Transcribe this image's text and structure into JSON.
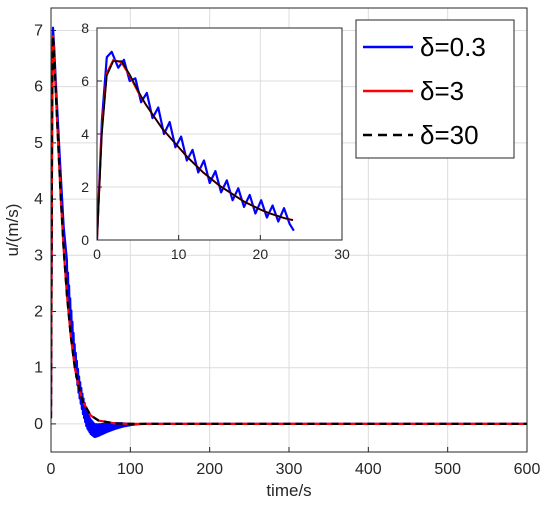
{
  "chart_data": {
    "main": {
      "type": "line",
      "xlabel": "time/s",
      "ylabel": "u/(m/s)",
      "xlim": [
        0,
        600
      ],
      "ylim": [
        -0.5,
        7.4
      ],
      "xticks": [
        0,
        100,
        200,
        300,
        400,
        500,
        600
      ],
      "yticks": [
        0,
        1,
        2,
        3,
        4,
        5,
        6,
        7
      ],
      "grid": true,
      "legend": "top-right",
      "series": [
        {
          "name": "δ=0.3",
          "color": "#0000ff",
          "style": "solid",
          "points": [
            [
              0,
              0.1
            ],
            [
              1.5,
              5.8
            ],
            [
              2.5,
              7.05
            ],
            [
              4,
              6.7
            ],
            [
              6,
              6.1
            ],
            [
              9,
              5.3
            ],
            [
              12,
              4.5
            ],
            [
              16,
              3.5
            ],
            [
              20,
              2.7
            ],
            [
              25,
              1.9
            ],
            [
              30,
              1.2
            ],
            [
              35,
              0.7
            ],
            [
              40,
              0.35
            ],
            [
              45,
              0.08
            ],
            [
              50,
              -0.05
            ],
            [
              55,
              -0.12
            ],
            [
              60,
              -0.11
            ],
            [
              70,
              -0.07
            ],
            [
              80,
              -0.04
            ],
            [
              90,
              -0.02
            ],
            [
              100,
              -0.01
            ],
            [
              120,
              0
            ],
            [
              600,
              0
            ]
          ],
          "oscillation": {
            "from": 20,
            "to": 110,
            "amplitude_start": 0.22,
            "half_period": 0.7
          }
        },
        {
          "name": "δ=3",
          "color": "#ff0000",
          "style": "solid",
          "points": [
            [
              0,
              0.1
            ],
            [
              1.5,
              5.6
            ],
            [
              2.5,
              6.9
            ],
            [
              4,
              6.6
            ],
            [
              6,
              5.9
            ],
            [
              9,
              5.0
            ],
            [
              12,
              4.1
            ],
            [
              16,
              3.1
            ],
            [
              20,
              2.3
            ],
            [
              25,
              1.55
            ],
            [
              30,
              1.0
            ],
            [
              35,
              0.65
            ],
            [
              40,
              0.4
            ],
            [
              50,
              0.15
            ],
            [
              60,
              0.06
            ],
            [
              80,
              0.01
            ],
            [
              100,
              0
            ],
            [
              600,
              0
            ]
          ]
        },
        {
          "name": "δ=30",
          "color": "#000000",
          "style": "dashed",
          "points": [
            [
              0,
              0.1
            ],
            [
              1.5,
              5.6
            ],
            [
              2.5,
              6.9
            ],
            [
              4,
              6.6
            ],
            [
              6,
              5.9
            ],
            [
              9,
              5.0
            ],
            [
              12,
              4.1
            ],
            [
              16,
              3.1
            ],
            [
              20,
              2.3
            ],
            [
              25,
              1.55
            ],
            [
              30,
              1.0
            ],
            [
              35,
              0.65
            ],
            [
              40,
              0.4
            ],
            [
              50,
              0.15
            ],
            [
              60,
              0.06
            ],
            [
              80,
              0.01
            ],
            [
              100,
              0
            ],
            [
              600,
              0
            ]
          ]
        }
      ]
    },
    "inset": {
      "type": "line",
      "xlim": [
        0,
        30
      ],
      "ylim": [
        0,
        8
      ],
      "xticks": [
        0,
        10,
        20,
        30
      ],
      "yticks": [
        0,
        2,
        4,
        6,
        8
      ],
      "grid": true,
      "series": [
        {
          "name": "δ=0.3",
          "color": "#0000ff",
          "points": [
            [
              0,
              0
            ],
            [
              0.6,
              4.5
            ],
            [
              1.2,
              6.9
            ],
            [
              1.8,
              7.1
            ],
            [
              2.6,
              6.5
            ],
            [
              3.3,
              6.8
            ],
            [
              4.0,
              6.0
            ],
            [
              4.7,
              6.1
            ],
            [
              5.4,
              5.2
            ],
            [
              6.1,
              5.55
            ],
            [
              6.8,
              4.6
            ],
            [
              7.5,
              5.0
            ],
            [
              8.2,
              4.0
            ],
            [
              8.9,
              4.45
            ],
            [
              9.6,
              3.5
            ],
            [
              10.3,
              3.9
            ],
            [
              11.0,
              3.0
            ],
            [
              11.7,
              3.4
            ],
            [
              12.4,
              2.55
            ],
            [
              13.1,
              3.0
            ],
            [
              13.8,
              2.15
            ],
            [
              14.5,
              2.6
            ],
            [
              15.2,
              1.8
            ],
            [
              15.9,
              2.25
            ],
            [
              16.6,
              1.5
            ],
            [
              17.3,
              1.95
            ],
            [
              18.0,
              1.25
            ],
            [
              18.7,
              1.7
            ],
            [
              19.4,
              1.0
            ],
            [
              20.1,
              1.5
            ],
            [
              20.8,
              0.85
            ],
            [
              21.5,
              1.3
            ],
            [
              22.2,
              0.7
            ],
            [
              22.9,
              1.2
            ],
            [
              23.6,
              0.6
            ],
            [
              24.1,
              0.35
            ]
          ]
        },
        {
          "name": "δ=3",
          "color": "#ff0000",
          "points": [
            [
              0,
              0
            ],
            [
              0.6,
              4.2
            ],
            [
              1.2,
              6.3
            ],
            [
              2.0,
              6.8
            ],
            [
              3.0,
              6.7
            ],
            [
              4.0,
              6.2
            ],
            [
              5.0,
              5.6
            ],
            [
              6.0,
              5.1
            ],
            [
              7.0,
              4.65
            ],
            [
              8.0,
              4.2
            ],
            [
              9.0,
              3.85
            ],
            [
              10.0,
              3.5
            ],
            [
              11.0,
              3.15
            ],
            [
              12.0,
              2.85
            ],
            [
              13.0,
              2.55
            ],
            [
              14.0,
              2.3
            ],
            [
              15.0,
              2.05
            ],
            [
              16.0,
              1.85
            ],
            [
              17.0,
              1.65
            ],
            [
              18.0,
              1.45
            ],
            [
              19.0,
              1.3
            ],
            [
              20.0,
              1.15
            ],
            [
              21.0,
              1.02
            ],
            [
              22.0,
              0.92
            ],
            [
              23.0,
              0.82
            ],
            [
              24.0,
              0.75
            ]
          ]
        },
        {
          "name": "δ=30",
          "color": "#000000",
          "points": [
            [
              0,
              0
            ],
            [
              0.6,
              4.0
            ],
            [
              1.2,
              6.2
            ],
            [
              2.0,
              6.75
            ],
            [
              3.0,
              6.75
            ],
            [
              4.0,
              6.25
            ],
            [
              5.0,
              5.65
            ],
            [
              6.0,
              5.1
            ],
            [
              7.0,
              4.65
            ],
            [
              8.0,
              4.2
            ],
            [
              9.0,
              3.85
            ],
            [
              10.0,
              3.5
            ],
            [
              11.0,
              3.15
            ],
            [
              12.0,
              2.85
            ],
            [
              13.0,
              2.55
            ],
            [
              14.0,
              2.3
            ],
            [
              15.0,
              2.05
            ],
            [
              16.0,
              1.85
            ],
            [
              17.0,
              1.65
            ],
            [
              18.0,
              1.45
            ],
            [
              19.0,
              1.3
            ],
            [
              20.0,
              1.15
            ],
            [
              21.0,
              1.02
            ],
            [
              22.0,
              0.92
            ],
            [
              23.0,
              0.82
            ],
            [
              24.0,
              0.75
            ]
          ]
        }
      ]
    }
  }
}
